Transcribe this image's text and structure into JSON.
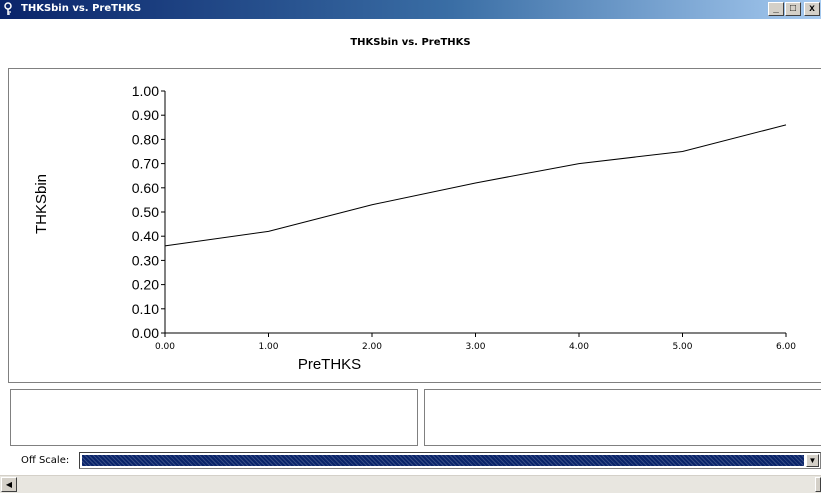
{
  "window": {
    "title": "THKSbin vs. PreTHKS",
    "minimize_glyph": "_",
    "restore_glyph": "□",
    "close_glyph": "x",
    "icon": "key-icon"
  },
  "header": {
    "title": "THKSbin vs. PreTHKS"
  },
  "chart_data": {
    "type": "line",
    "title": "",
    "xlabel": "PreTHKS",
    "ylabel": "THKSbin",
    "xlim": [
      0,
      6
    ],
    "ylim": [
      0,
      1
    ],
    "x_ticks": [
      "0.00",
      "1.00",
      "2.00",
      "3.00",
      "4.00",
      "5.00",
      "6.00"
    ],
    "y_ticks": [
      "0.00",
      "0.10",
      "0.20",
      "0.30",
      "0.40",
      "0.50",
      "0.60",
      "0.70",
      "0.80",
      "0.90",
      "1.00"
    ],
    "grid": false,
    "series": [
      {
        "x": [
          0,
          1,
          2,
          3,
          4,
          5,
          6
        ],
        "values": [
          0.36,
          0.42,
          0.53,
          0.62,
          0.7,
          0.75,
          0.86
        ],
        "color": "#000000"
      }
    ]
  },
  "offscale": {
    "label": "Off Scale:",
    "arrow_glyph": "▼"
  },
  "scrollbar": {
    "left_glyph": "◀"
  }
}
